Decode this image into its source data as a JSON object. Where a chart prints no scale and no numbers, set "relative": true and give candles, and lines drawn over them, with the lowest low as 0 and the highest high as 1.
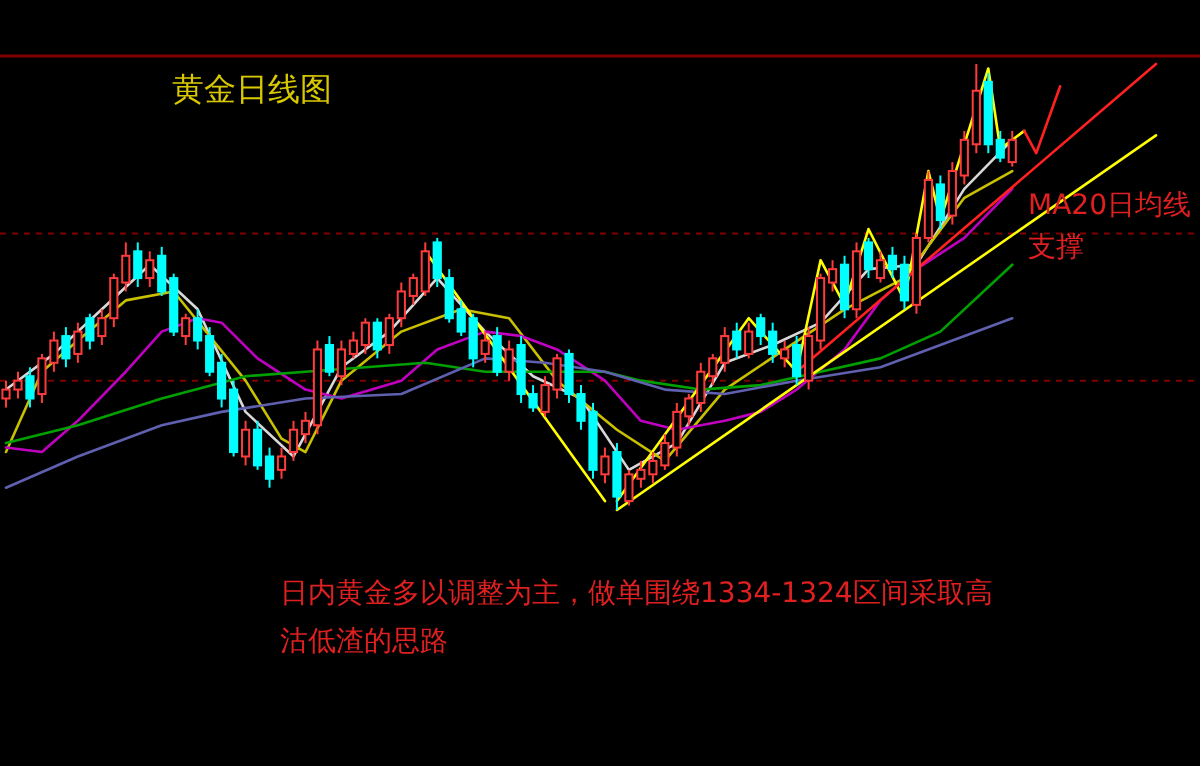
{
  "chart_data": {
    "type": "candlestick",
    "relative": true,
    "title": "黄金日线图",
    "annotations": [
      "MA20日均线",
      "支撑",
      "日内黄金多以调整为主，做单围绕1334-1324区间采取高沽低渣的思路"
    ],
    "categories": [
      null,
      null,
      null,
      null,
      null,
      null,
      null,
      null,
      null,
      null,
      null,
      null,
      null,
      null,
      null,
      null,
      null,
      null,
      null,
      null,
      null,
      null,
      null,
      null,
      null,
      null,
      null,
      null,
      null,
      null,
      null,
      null,
      null,
      null,
      null,
      null,
      null,
      null,
      null,
      null,
      null,
      null,
      null,
      null,
      null,
      null,
      null,
      null,
      null,
      null,
      null,
      null,
      null,
      null,
      null,
      null,
      null,
      null,
      null,
      null,
      null,
      null,
      null,
      null,
      null,
      null,
      null,
      null,
      null,
      null,
      null,
      null,
      null,
      null,
      null,
      null,
      null,
      null,
      null,
      null,
      null,
      null,
      null,
      null,
      null,
      null,
      null,
      null,
      null,
      null,
      null,
      null,
      null,
      null,
      null,
      null,
      null
    ],
    "ohlc": [
      [
        0.25,
        0.29,
        0.23,
        0.27
      ],
      [
        0.27,
        0.31,
        0.25,
        0.29
      ],
      [
        0.3,
        0.32,
        0.23,
        0.25
      ],
      [
        0.26,
        0.35,
        0.24,
        0.34
      ],
      [
        0.33,
        0.4,
        0.31,
        0.38
      ],
      [
        0.39,
        0.41,
        0.32,
        0.34
      ],
      [
        0.35,
        0.42,
        0.33,
        0.4
      ],
      [
        0.43,
        0.44,
        0.36,
        0.38
      ],
      [
        0.39,
        0.45,
        0.37,
        0.43
      ],
      [
        0.43,
        0.53,
        0.41,
        0.52
      ],
      [
        0.51,
        0.6,
        0.49,
        0.57
      ],
      [
        0.58,
        0.6,
        0.5,
        0.52
      ],
      [
        0.52,
        0.58,
        0.5,
        0.56
      ],
      [
        0.57,
        0.59,
        0.48,
        0.49
      ],
      [
        0.52,
        0.53,
        0.39,
        0.4
      ],
      [
        0.39,
        0.44,
        0.37,
        0.43
      ],
      [
        0.43,
        0.45,
        0.36,
        0.38
      ],
      [
        0.39,
        0.41,
        0.3,
        0.31
      ],
      [
        0.33,
        0.35,
        0.23,
        0.25
      ],
      [
        0.27,
        0.29,
        0.12,
        0.13
      ],
      [
        0.12,
        0.2,
        0.1,
        0.18
      ],
      [
        0.18,
        0.2,
        0.09,
        0.1
      ],
      [
        0.12,
        0.14,
        0.05,
        0.07
      ],
      [
        0.09,
        0.14,
        0.07,
        0.12
      ],
      [
        0.13,
        0.2,
        0.11,
        0.18
      ],
      [
        0.17,
        0.22,
        0.15,
        0.2
      ],
      [
        0.19,
        0.38,
        0.17,
        0.36
      ],
      [
        0.37,
        0.39,
        0.3,
        0.31
      ],
      [
        0.3,
        0.38,
        0.28,
        0.36
      ],
      [
        0.35,
        0.4,
        0.34,
        0.38
      ],
      [
        0.37,
        0.43,
        0.35,
        0.42
      ],
      [
        0.42,
        0.43,
        0.34,
        0.36
      ],
      [
        0.37,
        0.44,
        0.35,
        0.43
      ],
      [
        0.43,
        0.51,
        0.41,
        0.49
      ],
      [
        0.48,
        0.53,
        0.46,
        0.52
      ],
      [
        0.49,
        0.6,
        0.48,
        0.58
      ],
      [
        0.6,
        0.61,
        0.5,
        0.52
      ],
      [
        0.52,
        0.54,
        0.42,
        0.43
      ],
      [
        0.45,
        0.47,
        0.39,
        0.4
      ],
      [
        0.43,
        0.44,
        0.32,
        0.34
      ],
      [
        0.35,
        0.4,
        0.33,
        0.38
      ],
      [
        0.39,
        0.41,
        0.3,
        0.31
      ],
      [
        0.31,
        0.38,
        0.29,
        0.36
      ],
      [
        0.37,
        0.39,
        0.24,
        0.26
      ],
      [
        0.26,
        0.28,
        0.22,
        0.23
      ],
      [
        0.22,
        0.3,
        0.21,
        0.28
      ],
      [
        0.27,
        0.35,
        0.25,
        0.34
      ],
      [
        0.35,
        0.36,
        0.24,
        0.26
      ],
      [
        0.26,
        0.28,
        0.18,
        0.2
      ],
      [
        0.22,
        0.24,
        0.07,
        0.09
      ],
      [
        0.08,
        0.14,
        0.06,
        0.12
      ],
      [
        0.13,
        0.15,
        0,
        0.03
      ],
      [
        0.02,
        0.09,
        0.01,
        0.08
      ],
      [
        0.07,
        0.11,
        0.05,
        0.09
      ],
      [
        0.08,
        0.13,
        0.06,
        0.11
      ],
      [
        0.1,
        0.17,
        0.09,
        0.15
      ],
      [
        0.14,
        0.24,
        0.12,
        0.22
      ],
      [
        0.21,
        0.26,
        0.19,
        0.25
      ],
      [
        0.24,
        0.33,
        0.22,
        0.31
      ],
      [
        0.3,
        0.35,
        0.28,
        0.34
      ],
      [
        0.33,
        0.41,
        0.31,
        0.39
      ],
      [
        0.4,
        0.42,
        0.34,
        0.36
      ],
      [
        0.35,
        0.42,
        0.34,
        0.4
      ],
      [
        0.43,
        0.44,
        0.37,
        0.39
      ],
      [
        0.4,
        0.42,
        0.33,
        0.35
      ],
      [
        0.34,
        0.38,
        0.32,
        0.36
      ],
      [
        0.37,
        0.39,
        0.28,
        0.3
      ],
      [
        0.29,
        0.41,
        0.27,
        0.39
      ],
      [
        0.38,
        0.53,
        0.36,
        0.52
      ],
      [
        0.51,
        0.56,
        0.49,
        0.54
      ],
      [
        0.55,
        0.57,
        0.43,
        0.45
      ],
      [
        0.45,
        0.6,
        0.43,
        0.58
      ],
      [
        0.6,
        0.61,
        0.52,
        0.54
      ],
      [
        0.52,
        0.58,
        0.51,
        0.56
      ],
      [
        0.57,
        0.59,
        0.52,
        0.54
      ],
      [
        0.55,
        0.57,
        0.45,
        0.47
      ],
      [
        0.46,
        0.62,
        0.44,
        0.61
      ],
      [
        0.61,
        0.76,
        0.6,
        0.74
      ],
      [
        0.73,
        0.75,
        0.63,
        0.65
      ],
      [
        0.66,
        0.78,
        0.64,
        0.76
      ],
      [
        0.75,
        0.85,
        0.73,
        0.83
      ],
      [
        0.82,
        1,
        0.8,
        0.94
      ],
      [
        0.96,
        0.98,
        0.8,
        0.82
      ],
      [
        0.83,
        0.85,
        0.78,
        0.79
      ],
      [
        0.78,
        0.85,
        0.77,
        0.83
      ],
      null,
      null,
      null,
      null,
      null,
      null,
      null,
      null,
      null,
      null,
      null,
      null
    ],
    "series": [
      {
        "type": "line",
        "color": "#d8d8d8",
        "values": [
          0.27,
          null,
          null,
          null,
          0.35,
          null,
          null,
          null,
          0.45,
          null,
          null,
          null,
          0.55,
          null,
          null,
          null,
          0.45,
          null,
          null,
          null,
          0.22,
          null,
          null,
          null,
          0.12,
          null,
          null,
          null,
          0.32,
          null,
          null,
          null,
          0.4,
          null,
          null,
          null,
          0.52,
          null,
          null,
          null,
          0.4,
          null,
          null,
          null,
          0.3,
          null,
          null,
          null,
          0.25,
          null,
          null,
          null,
          0.09,
          null,
          null,
          null,
          0.15,
          null,
          null,
          null,
          0.33,
          null,
          null,
          null,
          0.37,
          null,
          null,
          null,
          0.42,
          null,
          null,
          null,
          0.54,
          null,
          null,
          null,
          0.55,
          null,
          null,
          null,
          0.72,
          null,
          null,
          null,
          0.83,
          null,
          null,
          null,
          null,
          null,
          null,
          null,
          null,
          null,
          null,
          null,
          null
        ]
      },
      {
        "type": "line",
        "color": "#c8c000",
        "values": [
          0.13,
          null,
          null,
          0.31,
          null,
          null,
          0.38,
          null,
          null,
          null,
          0.47,
          null,
          null,
          null,
          0.49,
          null,
          null,
          null,
          null,
          null,
          0.29,
          null,
          null,
          0.16,
          null,
          0.13,
          null,
          null,
          0.29,
          null,
          null,
          null,
          null,
          0.4,
          null,
          null,
          null,
          null,
          0.45,
          null,
          null,
          null,
          0.43,
          null,
          null,
          null,
          0.29,
          null,
          null,
          null,
          null,
          0.18,
          null,
          null,
          null,
          0.11,
          null,
          null,
          null,
          null,
          0.27,
          null,
          null,
          null,
          null,
          0.36,
          null,
          null,
          null,
          null,
          0.45,
          null,
          null,
          null,
          null,
          0.52,
          null,
          null,
          null,
          null,
          0.7,
          null,
          null,
          null,
          0.76,
          null,
          null,
          null,
          null,
          null,
          null,
          null,
          null,
          null,
          null,
          null,
          null
        ]
      },
      {
        "type": "line",
        "color": "#c000c0",
        "values": [
          0.14,
          null,
          null,
          0.13,
          null,
          null,
          0.2,
          null,
          null,
          null,
          0.31,
          null,
          null,
          0.4,
          null,
          null,
          0.43,
          null,
          0.42,
          null,
          null,
          0.34,
          null,
          null,
          null,
          0.27,
          null,
          null,
          0.25,
          null,
          null,
          null,
          null,
          0.29,
          null,
          null,
          0.36,
          null,
          null,
          null,
          0.4,
          null,
          null,
          0.39,
          null,
          null,
          0.36,
          null,
          null,
          null,
          0.29,
          null,
          null,
          0.2,
          null,
          null,
          0.18,
          null,
          null,
          null,
          0.2,
          null,
          null,
          0.22,
          null,
          null,
          0.27,
          null,
          null,
          null,
          0.36,
          null,
          null,
          0.47,
          null,
          null,
          0.54,
          null,
          null,
          null,
          0.61,
          null,
          null,
          null,
          0.72,
          null,
          null,
          null,
          null,
          null,
          null,
          null,
          null,
          null,
          null,
          null,
          null
        ]
      },
      {
        "type": "line",
        "color": "#00a000",
        "values": [
          0.15,
          null,
          null,
          null,
          null,
          null,
          0.19,
          null,
          null,
          null,
          null,
          null,
          null,
          0.25,
          null,
          null,
          null,
          null,
          null,
          null,
          0.3,
          null,
          null,
          null,
          null,
          0.31,
          null,
          null,
          null,
          null,
          0.32,
          null,
          null,
          null,
          null,
          0.33,
          null,
          null,
          null,
          null,
          0.31,
          null,
          null,
          null,
          null,
          0.31,
          null,
          null,
          null,
          null,
          0.31,
          null,
          null,
          0.29,
          null,
          null,
          null,
          null,
          0.27,
          null,
          null,
          null,
          null,
          0.28,
          null,
          null,
          null,
          null,
          0.31,
          null,
          null,
          null,
          null,
          0.34,
          null,
          null,
          null,
          null,
          0.4,
          null,
          null,
          null,
          null,
          null,
          0.55,
          null,
          null,
          null,
          null,
          null,
          null,
          null,
          null,
          null,
          null,
          null,
          null
        ]
      },
      {
        "type": "line",
        "color": "#6060b0",
        "values": [
          0.05,
          null,
          null,
          null,
          null,
          null,
          0.12,
          null,
          null,
          null,
          null,
          null,
          null,
          0.19,
          null,
          null,
          null,
          null,
          0.22,
          null,
          null,
          null,
          null,
          null,
          null,
          0.25,
          null,
          null,
          null,
          null,
          null,
          null,
          null,
          0.26,
          null,
          null,
          null,
          null,
          null,
          null,
          0.34,
          null,
          null,
          null,
          null,
          0.33,
          null,
          null,
          null,
          null,
          0.31,
          null,
          null,
          null,
          null,
          0.27,
          null,
          null,
          null,
          null,
          0.26,
          null,
          null,
          null,
          null,
          null,
          0.29,
          null,
          null,
          null,
          null,
          null,
          null,
          0.32,
          null,
          null,
          null,
          null,
          0.37,
          null,
          null,
          null,
          null,
          null,
          0.43,
          null,
          null,
          null,
          null,
          null,
          null,
          null,
          null,
          null,
          null,
          null,
          null
        ]
      },
      {
        "type": "line",
        "color": "#ffff00",
        "values": [
          null,
          null,
          null,
          null,
          null,
          null,
          null,
          null,
          null,
          null,
          null,
          null,
          null,
          null,
          null,
          null,
          null,
          null,
          null,
          null,
          null,
          null,
          null,
          null,
          null,
          null,
          null,
          null,
          null,
          null,
          null,
          null,
          null,
          null,
          null,
          0.58,
          null,
          null,
          null,
          null,
          null,
          null,
          null,
          null,
          null,
          null,
          null,
          null,
          null,
          null,
          0.02,
          null,
          null,
          null,
          null,
          null,
          null,
          null,
          null,
          null,
          null,
          null,
          null,
          null,
          null,
          null,
          null,
          null,
          null,
          null,
          null,
          null,
          null,
          null,
          null,
          null,
          null,
          null,
          null,
          null,
          null,
          null,
          null,
          null,
          null,
          null,
          null,
          null,
          null,
          null,
          null,
          null,
          null,
          null,
          null,
          null,
          null
        ]
      },
      {
        "type": "line",
        "color": "#ffff00",
        "values": [
          null,
          null,
          null,
          null,
          null,
          null,
          null,
          null,
          null,
          null,
          null,
          null,
          null,
          null,
          null,
          null,
          null,
          null,
          null,
          null,
          null,
          null,
          null,
          null,
          null,
          null,
          null,
          null,
          null,
          null,
          null,
          null,
          null,
          null,
          null,
          null,
          null,
          null,
          null,
          null,
          null,
          null,
          null,
          null,
          null,
          null,
          null,
          null,
          null,
          null,
          null,
          0.02,
          null,
          null,
          null,
          null,
          null,
          null,
          null,
          null,
          null,
          null,
          0.43,
          null,
          null,
          null,
          0.31,
          null,
          0.56,
          null,
          0.46,
          null,
          0.63,
          null,
          null,
          0.47,
          null,
          0.76,
          0.65,
          null,
          null,
          null,
          0.99,
          0.81,
          null,
          0.85,
          null,
          null,
          null,
          null,
          null,
          null,
          null,
          null,
          null,
          null,
          null
        ]
      },
      {
        "type": "line",
        "color": "#ffff00",
        "values": [
          null,
          null,
          null,
          null,
          null,
          null,
          null,
          null,
          null,
          null,
          null,
          null,
          null,
          null,
          null,
          null,
          null,
          null,
          null,
          null,
          null,
          null,
          null,
          null,
          null,
          null,
          null,
          null,
          null,
          null,
          null,
          null,
          null,
          null,
          null,
          null,
          null,
          null,
          null,
          null,
          null,
          null,
          null,
          null,
          null,
          null,
          null,
          null,
          null,
          null,
          null,
          0,
          null,
          null,
          null,
          null,
          null,
          null,
          null,
          null,
          null,
          null,
          null,
          null,
          null,
          null,
          null,
          null,
          null,
          null,
          null,
          null,
          null,
          null,
          null,
          null,
          null,
          null,
          null,
          null,
          null,
          null,
          null,
          null,
          null,
          null,
          null,
          null,
          null,
          null,
          null,
          null,
          null,
          null,
          null,
          null,
          0.84
        ]
      },
      {
        "type": "line",
        "color": "#ff2020",
        "values": [
          null,
          null,
          null,
          null,
          null,
          null,
          null,
          null,
          null,
          null,
          null,
          null,
          null,
          null,
          null,
          null,
          null,
          null,
          null,
          null,
          null,
          null,
          null,
          null,
          null,
          null,
          null,
          null,
          null,
          null,
          null,
          null,
          null,
          null,
          null,
          null,
          null,
          null,
          null,
          null,
          null,
          null,
          null,
          null,
          null,
          null,
          null,
          null,
          null,
          null,
          null,
          null,
          null,
          null,
          null,
          null,
          null,
          null,
          null,
          null,
          null,
          null,
          null,
          null,
          null,
          null,
          0.31,
          null,
          null,
          null,
          null,
          null,
          null,
          null,
          null,
          null,
          null,
          null,
          null,
          null,
          null,
          null,
          null,
          null,
          null,
          null,
          null,
          null,
          null,
          null,
          null,
          null,
          null,
          null,
          null,
          null,
          1
        ]
      },
      {
        "type": "line",
        "color": "#ff2020",
        "values": [
          null,
          null,
          null,
          null,
          null,
          null,
          null,
          null,
          null,
          null,
          null,
          null,
          null,
          null,
          null,
          null,
          null,
          null,
          null,
          null,
          null,
          null,
          null,
          null,
          null,
          null,
          null,
          null,
          null,
          null,
          null,
          null,
          null,
          null,
          null,
          null,
          null,
          null,
          null,
          null,
          null,
          null,
          null,
          null,
          null,
          null,
          null,
          null,
          null,
          null,
          null,
          null,
          null,
          null,
          null,
          null,
          null,
          null,
          null,
          null,
          null,
          null,
          null,
          null,
          null,
          null,
          null,
          null,
          null,
          null,
          null,
          null,
          null,
          null,
          null,
          null,
          null,
          null,
          null,
          null,
          null,
          null,
          null,
          null,
          null,
          0.85,
          0.8,
          null,
          0.95,
          null,
          null,
          null,
          null,
          null,
          null,
          null,
          null
        ]
      }
    ],
    "ref_lines": [
      {
        "axis": "y",
        "value": 0.62,
        "color": "#800000",
        "line_style": "dashed"
      },
      {
        "axis": "y",
        "value": 0.29,
        "color": "#800000",
        "line_style": "dashed"
      }
    ]
  }
}
